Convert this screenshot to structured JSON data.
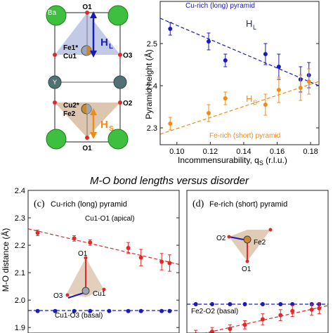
{
  "structure": {
    "labels": {
      "ba": "Ba",
      "y": "Y",
      "o1_top": "O1",
      "o1_bottom": "O1",
      "o3": "O3",
      "o2": "O2",
      "fe1": "Fe1*",
      "cu1": "Cu1",
      "cu2": "Cu2*",
      "fe2": "Fe2",
      "hl": "H",
      "hl_sub": "L",
      "hs": "H",
      "hs_sub": "S"
    }
  },
  "section_title": "M-O bond lengths versus disorder",
  "chart_data": [
    {
      "type": "scatter",
      "panel": "top-right",
      "xlabel": "Incommensurability, q",
      "xlabel_sub": "S",
      "xlabel_unit": " (r.l.u.)",
      "ylabel": "Pyramid height (Å)",
      "xlim": [
        0.09,
        0.185
      ],
      "ylim": [
        2.26,
        2.6
      ],
      "xticks": [
        "0.10",
        "0.12",
        "0.14",
        "0.16",
        "0.18"
      ],
      "xtick_values": [
        0.1,
        0.12,
        0.14,
        0.16,
        0.18
      ],
      "yticks": [
        "2.3",
        "2.4",
        "2.5"
      ],
      "ytick_values": [
        2.3,
        2.4,
        2.5
      ],
      "annotations": {
        "cu_rich": "Cu-rich (long) pyramid",
        "fe_rich": "Fe-rich (short) pyramid",
        "hl": "H",
        "hl_sub": "L",
        "hs": "H",
        "hs_sub": "S"
      },
      "series": [
        {
          "color": "#1a1ab8",
          "x": [
            0.096,
            0.119,
            0.129,
            0.153,
            0.161,
            0.174,
            0.179
          ],
          "y": [
            2.535,
            2.505,
            2.46,
            2.475,
            2.445,
            2.415,
            2.425
          ],
          "err": [
            0.015,
            0.02,
            0.015,
            0.025,
            0.03,
            0.03,
            0.03
          ],
          "fit": {
            "x": [
              0.09,
              0.185
            ],
            "y": [
              2.56,
              2.4
            ]
          }
        },
        {
          "color": "#f08c14",
          "x": [
            0.096,
            0.119,
            0.129,
            0.153,
            0.161,
            0.174,
            0.179
          ],
          "y": [
            2.31,
            2.335,
            2.37,
            2.355,
            2.39,
            2.395,
            2.41
          ],
          "err": [
            0.015,
            0.02,
            0.015,
            0.025,
            0.03,
            0.03,
            0.03
          ],
          "fit": {
            "x": [
              0.09,
              0.185
            ],
            "y": [
              2.285,
              2.41
            ]
          }
        }
      ]
    },
    {
      "type": "scatter",
      "panel": "bottom-left",
      "panel_label": "(c)",
      "title": "Cu-rich (long) pyramid",
      "ylabel": "M-O distance (Å)",
      "ylim": [
        1.88,
        2.4
      ],
      "yticks": [
        "1.9",
        "2.0",
        "2.1",
        "2.2",
        "2.3",
        "2.4"
      ],
      "ytick_values": [
        1.9,
        2.0,
        2.1,
        2.2,
        2.3,
        2.4
      ],
      "xlim": [
        0.09,
        0.185
      ],
      "annotations": {
        "apical": "Cu1-O1 (apical)",
        "basal": "Cu1-O3 (basal)",
        "o1": "O1",
        "o3": "O3",
        "cu1": "Cu1"
      },
      "series": [
        {
          "color": "#e02828",
          "x": [
            0.096,
            0.119,
            0.129,
            0.153,
            0.161,
            0.174,
            0.179
          ],
          "y": [
            2.245,
            2.225,
            2.21,
            2.19,
            2.155,
            2.14,
            2.135
          ],
          "err": [
            0.01,
            0.01,
            0.01,
            0.02,
            0.03,
            0.03,
            0.03
          ],
          "fit": {
            "x": [
              0.09,
              0.185
            ],
            "y": [
              2.26,
              2.13
            ]
          }
        },
        {
          "color": "#1a1ab8",
          "x": [
            0.096,
            0.107,
            0.119,
            0.129,
            0.141,
            0.153,
            0.161,
            0.174,
            0.179
          ],
          "y": [
            1.96,
            1.96,
            1.96,
            1.96,
            1.96,
            1.96,
            1.96,
            1.96,
            1.96
          ],
          "fit": {
            "x": [
              0.09,
              0.185
            ],
            "y": [
              1.962,
              1.962
            ]
          }
        }
      ]
    },
    {
      "type": "scatter",
      "panel": "bottom-right",
      "panel_label": "(d)",
      "title": "Fe-rich (short) pyramid",
      "ylim": [
        1.88,
        2.4
      ],
      "xlim": [
        0.09,
        0.185
      ],
      "annotations": {
        "basal": "Fe2-O2 (basal)",
        "o2": "O2",
        "fe2": "Fe2",
        "o1": "O1"
      },
      "series": [
        {
          "color": "#1a1ab8",
          "x": [
            0.096,
            0.107,
            0.119,
            0.129,
            0.141,
            0.153,
            0.161,
            0.174,
            0.179
          ],
          "y": [
            1.985,
            1.985,
            1.985,
            1.985,
            1.985,
            1.985,
            1.985,
            1.985,
            1.985
          ],
          "fit": {
            "x": [
              0.09,
              0.185
            ],
            "y": [
              1.985,
              1.985
            ]
          }
        },
        {
          "color": "#e02828",
          "x": [
            0.096,
            0.107,
            0.119,
            0.129,
            0.141,
            0.153,
            0.161,
            0.174,
            0.179
          ],
          "y": [
            1.875,
            1.885,
            1.895,
            1.91,
            1.93,
            1.945,
            1.96,
            1.965,
            1.97
          ],
          "err": [
            0.015,
            0.015,
            0.015,
            0.015,
            0.02,
            0.02,
            0.02,
            0.02,
            0.02
          ],
          "fit": {
            "x": [
              0.09,
              0.185
            ],
            "y": [
              1.865,
              1.98
            ]
          }
        }
      ]
    }
  ]
}
